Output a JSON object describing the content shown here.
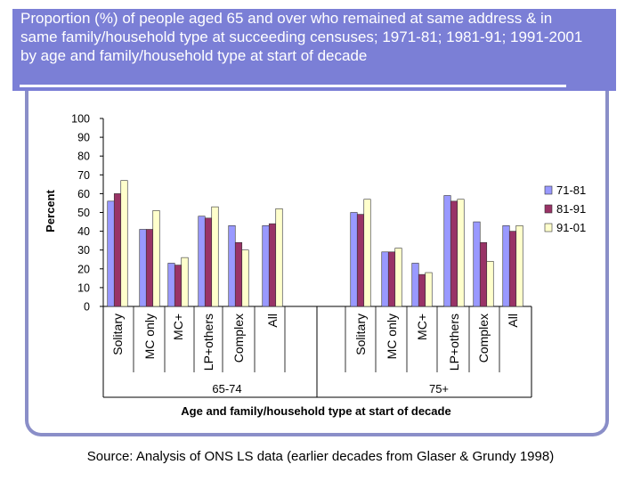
{
  "slide": {
    "title": "Proportion (%) of people aged 65 and over who remained at same address & in same family/household type at succeeding censuses; 1971-81; 1981-91; 1991-2001 by age and family/household type at start of decade",
    "source": "Source: Analysis of ONS LS data (earlier decades from Glaser & Grundy 1998)"
  },
  "chart_data": {
    "type": "bar",
    "title": "",
    "ylabel": "Percent",
    "xlabel": "Age and family/household type at start of decade",
    "ylim": [
      0,
      100
    ],
    "yticks": [
      0,
      10,
      20,
      30,
      40,
      50,
      60,
      70,
      80,
      90,
      100
    ],
    "grid": false,
    "legend_position": "right",
    "groups": [
      {
        "label": "65-74",
        "categories": [
          "Solitary",
          "MC only",
          "MC+",
          "LP+others",
          "Complex",
          "All"
        ]
      },
      {
        "label": "75+",
        "categories": [
          "Solitary",
          "MC only",
          "MC+",
          "LP+others",
          "Complex",
          "All"
        ]
      }
    ],
    "series": [
      {
        "name": "71-81",
        "color": "#9999ff",
        "values": [
          56,
          41,
          23,
          48,
          43,
          43,
          50,
          29,
          23,
          59,
          45,
          43
        ]
      },
      {
        "name": "81-91",
        "color": "#993366",
        "values": [
          60,
          41,
          22,
          47,
          34,
          44,
          49,
          29,
          17,
          56,
          34,
          40
        ]
      },
      {
        "name": "91-01",
        "color": "#ffffcc",
        "values": [
          67,
          51,
          26,
          53,
          30,
          52,
          57,
          31,
          18,
          57,
          24,
          43
        ]
      }
    ]
  }
}
